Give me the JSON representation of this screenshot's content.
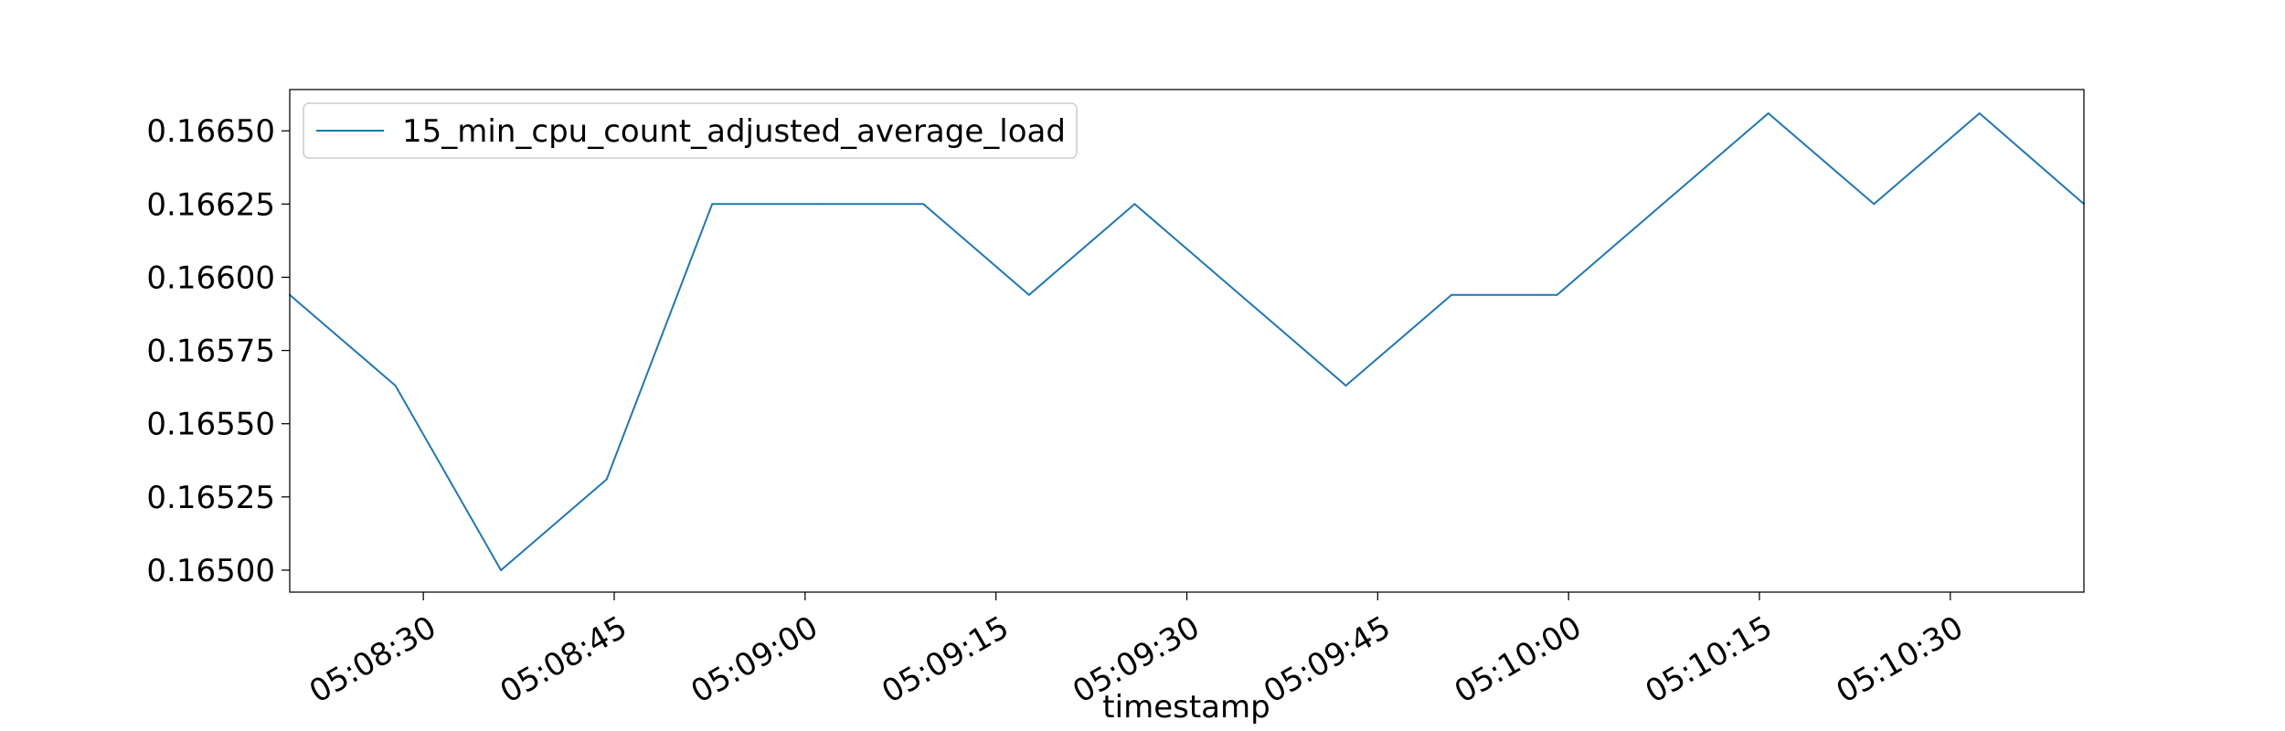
{
  "chart_data": {
    "type": "line",
    "title": "",
    "xlabel": "timestamp",
    "ylabel": "",
    "x_tick_labels": [
      "05:08:30",
      "05:08:45",
      "05:09:00",
      "05:09:15",
      "05:09:30",
      "05:09:45",
      "05:10:00",
      "05:10:15",
      "05:10:30"
    ],
    "x_tick_values": [
      "05:08:30",
      "05:08:45",
      "05:09:00",
      "05:09:15",
      "05:09:30",
      "05:09:45",
      "05:10:00",
      "05:10:15",
      "05:10:30"
    ],
    "xlim": [
      "05:08:19.5",
      "05:10:40.5"
    ],
    "y_tick_labels": [
      "0.16500",
      "0.16525",
      "0.16550",
      "0.16575",
      "0.16600",
      "0.16625",
      "0.16650"
    ],
    "y_tick_values": [
      0.165,
      0.16525,
      0.1655,
      0.16575,
      0.166,
      0.16625,
      0.1665
    ],
    "ylim": [
      0.164925,
      0.166641
    ],
    "grid": false,
    "legend_position": "top-left",
    "series": [
      {
        "name": "15_min_cpu_count_adjusted_average_load",
        "color": "#1f77b4",
        "x": [
          "05:08:19.5",
          "05:08:27.8",
          "05:08:36.1",
          "05:08:44.4",
          "05:08:52.7",
          "05:09:01.0",
          "05:09:09.3",
          "05:09:17.6",
          "05:09:25.9",
          "05:09:34.2",
          "05:09:42.5",
          "05:09:50.8",
          "05:09:59.1",
          "05:10:07.4",
          "05:10:15.7",
          "05:10:24.0",
          "05:10:32.3",
          "05:10:40.5"
        ],
        "values": [
          0.16594,
          0.16563,
          0.165,
          0.16531,
          0.16625,
          0.16625,
          0.16625,
          0.16594,
          0.16625,
          0.16594,
          0.16563,
          0.16594,
          0.16594,
          0.16625,
          0.16656,
          0.16625,
          0.16656,
          0.16625
        ]
      }
    ]
  }
}
